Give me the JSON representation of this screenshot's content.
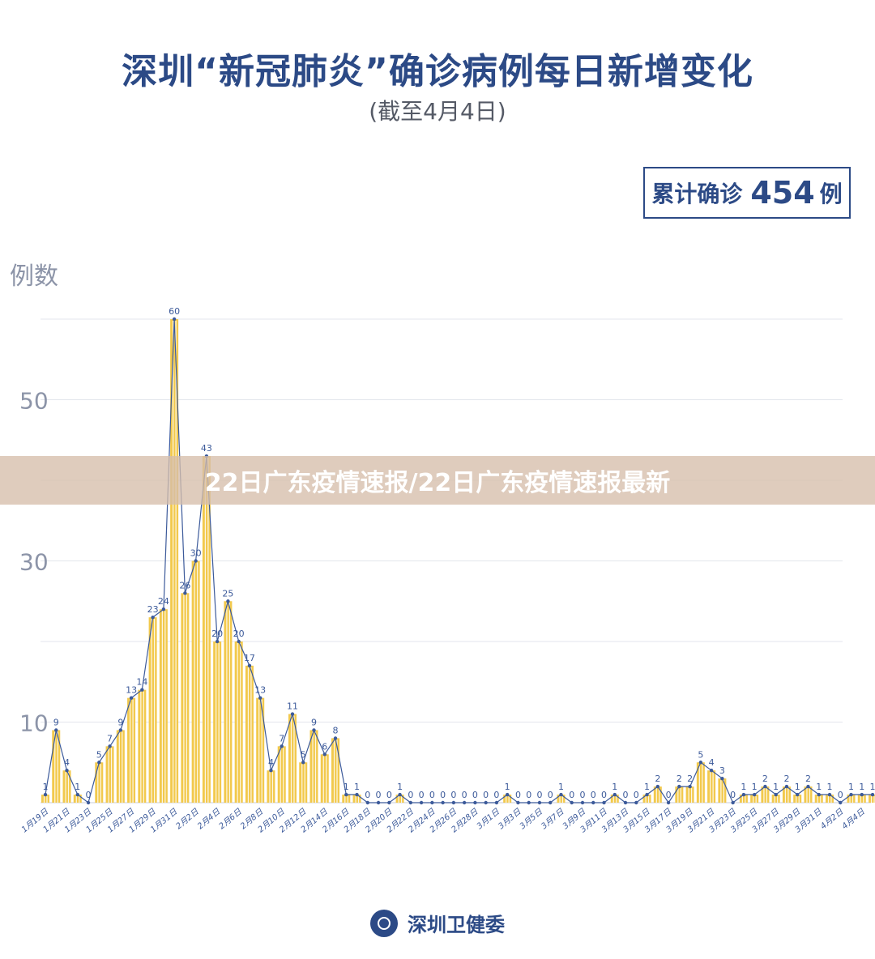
{
  "header": {
    "title": "深圳“新冠肺炎”确诊病例每日新增变化",
    "subtitle": "(截至4月4日)"
  },
  "total": {
    "label": "累计确诊",
    "value": "454",
    "unit": "例"
  },
  "banner": {
    "text": "22日广东疫情速报/22日广东疫情速报最新"
  },
  "footer": {
    "source": "深圳卫健委"
  },
  "colors": {
    "bar": "#f2c94c",
    "bar_stripe": "#ffffff",
    "line": "#3c5a9a",
    "title": "#2c4a86",
    "axis_text": "#8c94a8",
    "grid": "#e3e6ec"
  },
  "chart_data": {
    "type": "bar",
    "title": "深圳“新冠肺炎”确诊病例每日新增变化",
    "subtitle": "(截至4月4日)",
    "ylabel": "例数",
    "xlabel": "",
    "ylim": [
      0,
      60
    ],
    "yticks": [
      10,
      30,
      50
    ],
    "grid": true,
    "x_tick_labels": [
      "1月19日",
      "1月21日",
      "1月23日",
      "1月25日",
      "1月27日",
      "1月29日",
      "1月31日",
      "2月2日",
      "2月4日",
      "2月6日",
      "2月8日",
      "2月10日",
      "2月12日",
      "2月14日",
      "2月16日",
      "2月18日",
      "2月20日",
      "2月22日",
      "2月24日",
      "2月26日",
      "2月28日",
      "3月1日",
      "3月3日",
      "3月5日",
      "3月7日",
      "3月9日",
      "3月11日",
      "3月13日",
      "3月15日",
      "3月17日",
      "3月19日",
      "3月21日",
      "3月23日",
      "3月25日",
      "3月27日",
      "3月29日",
      "3月31日",
      "4月2日",
      "4月4日"
    ],
    "values": [
      1,
      9,
      4,
      1,
      0,
      5,
      7,
      9,
      13,
      14,
      23,
      24,
      60,
      26,
      30,
      43,
      20,
      25,
      20,
      17,
      13,
      4,
      7,
      11,
      5,
      9,
      6,
      8,
      1,
      1,
      0,
      0,
      0,
      1,
      0,
      0,
      0,
      0,
      0,
      0,
      0,
      0,
      0,
      1,
      0,
      0,
      0,
      0,
      1,
      0,
      0,
      0,
      0,
      1,
      0,
      0,
      1,
      2,
      0,
      2,
      2,
      5,
      4,
      3,
      0,
      1,
      1,
      2,
      1,
      2,
      1,
      2,
      1,
      1,
      0,
      1,
      1,
      1
    ]
  }
}
